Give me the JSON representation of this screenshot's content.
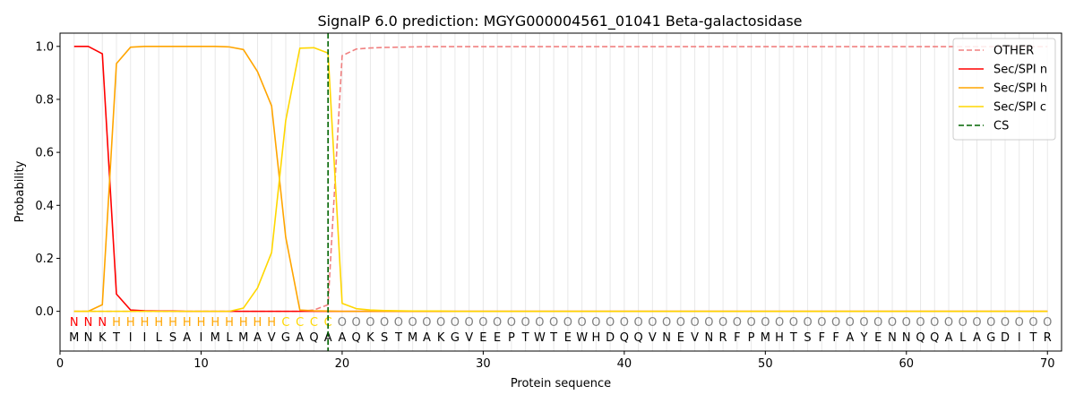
{
  "chart_data": {
    "type": "line",
    "title": "SignalP 6.0 prediction: MGYG000004561_01041 Beta-galactosidase",
    "xlabel": "Protein sequence",
    "ylabel": "Probability",
    "xlim": [
      0,
      71
    ],
    "ylim": [
      -0.15,
      1.05
    ],
    "x_ticks": [
      0,
      10,
      20,
      30,
      40,
      50,
      60,
      70
    ],
    "y_ticks": [
      0.0,
      0.2,
      0.4,
      0.6,
      0.8,
      1.0
    ],
    "x_tick_labels": [
      "0",
      "10",
      "20",
      "30",
      "40",
      "50",
      "60",
      "70"
    ],
    "y_tick_labels": [
      "0.0",
      "0.2",
      "0.4",
      "0.6",
      "0.8",
      "1.0"
    ],
    "grid": "vertical lines at each residue",
    "legend_position": "top-right",
    "sequence": [
      "M",
      "N",
      "K",
      "T",
      "I",
      "I",
      "L",
      "S",
      "A",
      "I",
      "M",
      "L",
      "M",
      "A",
      "V",
      "G",
      "A",
      "Q",
      "A",
      "A",
      "Q",
      "K",
      "S",
      "T",
      "M",
      "A",
      "K",
      "G",
      "V",
      "E",
      "E",
      "P",
      "T",
      "W",
      "T",
      "E",
      "W",
      "H",
      "D",
      "Q",
      "Q",
      "V",
      "N",
      "E",
      "V",
      "N",
      "R",
      "F",
      "P",
      "M",
      "H",
      "T",
      "S",
      "F",
      "F",
      "A",
      "Y",
      "E",
      "N",
      "N",
      "Q",
      "Q",
      "A",
      "L",
      "A",
      "G",
      "D",
      "I",
      "T",
      "R"
    ],
    "labels": [
      "N",
      "N",
      "N",
      "H",
      "H",
      "H",
      "H",
      "H",
      "H",
      "H",
      "H",
      "H",
      "H",
      "H",
      "H",
      "C",
      "C",
      "C",
      "C",
      "O",
      "O",
      "O",
      "O",
      "O",
      "O",
      "O",
      "O",
      "O",
      "O",
      "O",
      "O",
      "O",
      "O",
      "O",
      "O",
      "O",
      "O",
      "O",
      "O",
      "O",
      "O",
      "O",
      "O",
      "O",
      "O",
      "O",
      "O",
      "O",
      "O",
      "O",
      "O",
      "O",
      "O",
      "O",
      "O",
      "O",
      "O",
      "O",
      "O",
      "O",
      "O",
      "O",
      "O",
      "O",
      "O",
      "O",
      "O",
      "O",
      "O",
      "O"
    ],
    "label_colors": {
      "N": "#ff0000",
      "H": "#ffa500",
      "C": "#ffd700",
      "O": "#808080"
    },
    "series": [
      {
        "name": "OTHER",
        "color": "#f08080",
        "dash": "dashed",
        "values": [
          0.0,
          0.0,
          0.0,
          0.0,
          0.0,
          0.0,
          0.0,
          0.0,
          0.0,
          0.0,
          0.0,
          0.0,
          0.0,
          0.0,
          0.0,
          0.0,
          0.0,
          0.005,
          0.025,
          0.965,
          0.99,
          0.994,
          0.996,
          0.997,
          0.998,
          0.999,
          0.999,
          0.999,
          0.999,
          0.999,
          0.999,
          0.999,
          0.999,
          0.999,
          0.999,
          0.999,
          0.999,
          0.999,
          0.999,
          0.999,
          0.999,
          0.999,
          0.999,
          0.999,
          0.999,
          0.999,
          0.999,
          0.999,
          0.999,
          0.999,
          0.999,
          0.999,
          0.999,
          0.999,
          0.999,
          0.999,
          0.999,
          0.999,
          0.999,
          0.999,
          0.999,
          0.999,
          0.999,
          0.999,
          0.999,
          0.999,
          0.999,
          0.999,
          0.999,
          0.999
        ]
      },
      {
        "name": "Sec/SPI n",
        "color": "#ff0000",
        "dash": "solid",
        "values": [
          1.0,
          1.0,
          0.972,
          0.065,
          0.005,
          0.002,
          0.001,
          0.001,
          0.0,
          0.0,
          0.0,
          0.0,
          0.0,
          0.0,
          0.0,
          0.0,
          0.0,
          0.0,
          0.0,
          0.0,
          0.0,
          0.0,
          0.0,
          0.0,
          0.0,
          0.0,
          0.0,
          0.0,
          0.0,
          0.0,
          0.0,
          0.0,
          0.0,
          0.0,
          0.0,
          0.0,
          0.0,
          0.0,
          0.0,
          0.0,
          0.0,
          0.0,
          0.0,
          0.0,
          0.0,
          0.0,
          0.0,
          0.0,
          0.0,
          0.0,
          0.0,
          0.0,
          0.0,
          0.0,
          0.0,
          0.0,
          0.0,
          0.0,
          0.0,
          0.0,
          0.0,
          0.0,
          0.0,
          0.0,
          0.0,
          0.0,
          0.0,
          0.0,
          0.0,
          0.0
        ]
      },
      {
        "name": "Sec/SPI h",
        "color": "#ffa500",
        "dash": "solid",
        "values": [
          0.0,
          0.0,
          0.025,
          0.935,
          0.997,
          1.0,
          1.0,
          1.0,
          1.0,
          1.0,
          1.0,
          0.998,
          0.988,
          0.905,
          0.775,
          0.28,
          0.005,
          0.002,
          0.001,
          0.0,
          0.0,
          0.0,
          0.0,
          0.0,
          0.0,
          0.0,
          0.0,
          0.0,
          0.0,
          0.0,
          0.0,
          0.0,
          0.0,
          0.0,
          0.0,
          0.0,
          0.0,
          0.0,
          0.0,
          0.0,
          0.0,
          0.0,
          0.0,
          0.0,
          0.0,
          0.0,
          0.0,
          0.0,
          0.0,
          0.0,
          0.0,
          0.0,
          0.0,
          0.0,
          0.0,
          0.0,
          0.0,
          0.0,
          0.0,
          0.0,
          0.0,
          0.0,
          0.0,
          0.0,
          0.0,
          0.0,
          0.0,
          0.0,
          0.0,
          0.0
        ]
      },
      {
        "name": "Sec/SPI c",
        "color": "#ffd700",
        "dash": "solid",
        "values": [
          0.0,
          0.0,
          0.0,
          0.0,
          0.0,
          0.0,
          0.0,
          0.0,
          0.0,
          0.0,
          0.0,
          0.0,
          0.012,
          0.088,
          0.222,
          0.72,
          0.993,
          0.995,
          0.975,
          0.03,
          0.01,
          0.005,
          0.003,
          0.002,
          0.001,
          0.001,
          0.001,
          0.0,
          0.0,
          0.0,
          0.0,
          0.0,
          0.0,
          0.0,
          0.0,
          0.0,
          0.0,
          0.0,
          0.0,
          0.0,
          0.0,
          0.0,
          0.0,
          0.0,
          0.0,
          0.0,
          0.0,
          0.0,
          0.0,
          0.0,
          0.0,
          0.0,
          0.0,
          0.0,
          0.0,
          0.0,
          0.0,
          0.0,
          0.0,
          0.0,
          0.0,
          0.0,
          0.0,
          0.0,
          0.0,
          0.0,
          0.0,
          0.0,
          0.0,
          0.0
        ]
      }
    ],
    "cs": {
      "name": "CS",
      "position": 19,
      "color": "#006400",
      "dash": "dashed"
    }
  }
}
